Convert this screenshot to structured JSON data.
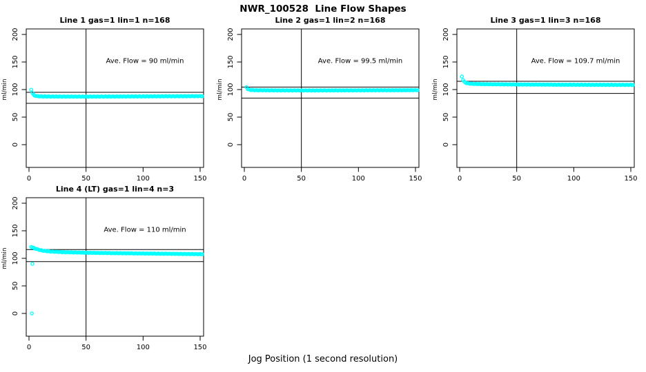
{
  "title": "NWR_100528  Line Flow Shapes",
  "xlabel": "Jog Position (1 second resolution)",
  "chart_data": {
    "type": "scatter",
    "layout": "2x3 grid, 4 panels used, shared style",
    "point_color": "#00FFFF",
    "axis_color": "#000000",
    "ylabel": "ml/min",
    "xticks": [
      0,
      50,
      100,
      150
    ],
    "yticks": [
      0,
      50,
      100,
      150,
      200
    ],
    "xlim": [
      -3,
      153
    ],
    "ylim": [
      -42,
      210
    ],
    "vline_x": 50,
    "plots": [
      {
        "title": "Line 1 gas=1 lin=1 n=168",
        "annotation": "Ave. Flow =  90  ml/min",
        "ave_flow": 90,
        "n": 168,
        "hline_upper": 95,
        "hline_lower": 75,
        "x_start": 2,
        "x_end": 152,
        "keypoints": [
          [
            2,
            100
          ],
          [
            3,
            94
          ],
          [
            4,
            90.5
          ],
          [
            5,
            89
          ],
          [
            7,
            88
          ],
          [
            10,
            87.6
          ],
          [
            20,
            87.3
          ],
          [
            50,
            87.2
          ],
          [
            90,
            87.5
          ],
          [
            120,
            87.8
          ],
          [
            152,
            88
          ]
        ],
        "outliers": []
      },
      {
        "title": "Line 2 gas=1 lin=2 n=168",
        "annotation": "Ave. Flow =  99.5  ml/min",
        "ave_flow": 99.5,
        "n": 168,
        "hline_upper": 104.5,
        "hline_lower": 84.5,
        "x_start": 2,
        "x_end": 152,
        "keypoints": [
          [
            2,
            104.5
          ],
          [
            3,
            101
          ],
          [
            4,
            99.8
          ],
          [
            6,
            99.2
          ],
          [
            10,
            98.8
          ],
          [
            30,
            98.5
          ],
          [
            60,
            98.4
          ],
          [
            100,
            98.6
          ],
          [
            130,
            98.8
          ],
          [
            152,
            99
          ]
        ],
        "outliers": []
      },
      {
        "title": "Line 3 gas=1 lin=3 n=168",
        "annotation": "Ave. Flow =  109.7  ml/min",
        "ave_flow": 109.7,
        "n": 168,
        "hline_upper": 115,
        "hline_lower": 93,
        "x_start": 2,
        "x_end": 152,
        "keypoints": [
          [
            2,
            124
          ],
          [
            3,
            117.5
          ],
          [
            4,
            114
          ],
          [
            6,
            111.8
          ],
          [
            10,
            110.5
          ],
          [
            20,
            109.8
          ],
          [
            50,
            109.2
          ],
          [
            90,
            108.8
          ],
          [
            120,
            108.6
          ],
          [
            152,
            108.5
          ]
        ],
        "outliers": []
      },
      {
        "title": "Line 4 (LT) gas=1 lin=4 n=3",
        "annotation": "Ave. Flow =  110  ml/min",
        "ave_flow": 110,
        "n": 3,
        "hline_upper": 116,
        "hline_lower": 94,
        "x_start": 2,
        "x_end": 152,
        "keypoints": [
          [
            2,
            121
          ],
          [
            3,
            120
          ],
          [
            5,
            118
          ],
          [
            8,
            116
          ],
          [
            12,
            114
          ],
          [
            18,
            112.5
          ],
          [
            30,
            111.2
          ],
          [
            50,
            110.2
          ],
          [
            75,
            109.4
          ],
          [
            100,
            108.8
          ],
          [
            125,
            108.2
          ],
          [
            152,
            107.6
          ]
        ],
        "outliers": [
          [
            3,
            90
          ],
          [
            2.5,
            0
          ]
        ]
      }
    ]
  }
}
